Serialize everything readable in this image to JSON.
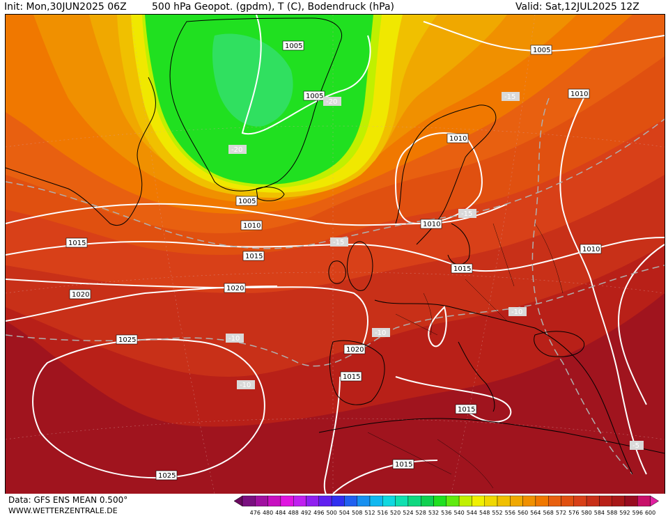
{
  "header": {
    "init": "Init: Mon,30JUN2025 06Z",
    "title": "500 hPa Geopot. (gpdm), T (C), Bodendruck (hPa)",
    "valid": "Valid: Sat,12JUL2025 12Z"
  },
  "footer": {
    "data_source": "Data: GFS ENS MEAN 0.500°",
    "website": "WWW.WETTERZENTRALE.DE"
  },
  "legend": {
    "colors": [
      "#6a0a5e",
      "#7a1080",
      "#a010a0",
      "#c810c0",
      "#e014e0",
      "#c020f0",
      "#9020f0",
      "#6020f0",
      "#3030f0",
      "#2060f0",
      "#1890f0",
      "#10b8f0",
      "#10d8e0",
      "#10e0b0",
      "#10d880",
      "#10d050",
      "#20e020",
      "#60ea10",
      "#c0f000",
      "#f0f000",
      "#f0d800",
      "#f0c000",
      "#f0a800",
      "#f09000",
      "#f07800",
      "#e86010",
      "#e05010",
      "#d84018",
      "#c83018",
      "#b82018",
      "#a81818",
      "#980c20",
      "#c8106a",
      "#e020a0"
    ],
    "ticks": [
      "476",
      "480",
      "484",
      "488",
      "492",
      "496",
      "500",
      "504",
      "508",
      "512",
      "516",
      "520",
      "524",
      "528",
      "532",
      "536",
      "540",
      "544",
      "548",
      "552",
      "556",
      "560",
      "564",
      "568",
      "572",
      "576",
      "580",
      "584",
      "588",
      "592",
      "596",
      "600"
    ]
  },
  "isobar_labels": [
    {
      "text": "1005",
      "style": "white"
    },
    {
      "text": "1005",
      "style": "white"
    },
    {
      "text": "1005",
      "style": "white"
    },
    {
      "text": "1005",
      "style": "white"
    },
    {
      "text": "1010",
      "style": "white"
    },
    {
      "text": "1010",
      "style": "white"
    },
    {
      "text": "1010",
      "style": "white"
    },
    {
      "text": "1010",
      "style": "white"
    },
    {
      "text": "1010",
      "style": "white"
    },
    {
      "text": "1015",
      "style": "white"
    },
    {
      "text": "1015",
      "style": "white"
    },
    {
      "text": "1015",
      "style": "white"
    },
    {
      "text": "1015",
      "style": "white"
    },
    {
      "text": "1015",
      "style": "white"
    },
    {
      "text": "1020",
      "style": "white"
    },
    {
      "text": "1020",
      "style": "white"
    },
    {
      "text": "1020",
      "style": "white"
    },
    {
      "text": "1025",
      "style": "white"
    },
    {
      "text": "1025",
      "style": "white"
    }
  ],
  "temperature_labels": [
    {
      "text": "-20"
    },
    {
      "text": "-20"
    },
    {
      "text": "-15"
    },
    {
      "text": "-15"
    },
    {
      "text": "-15"
    },
    {
      "text": "-10"
    },
    {
      "text": "-10"
    },
    {
      "text": "-10"
    },
    {
      "text": "-10"
    },
    {
      "text": "-5"
    }
  ]
}
